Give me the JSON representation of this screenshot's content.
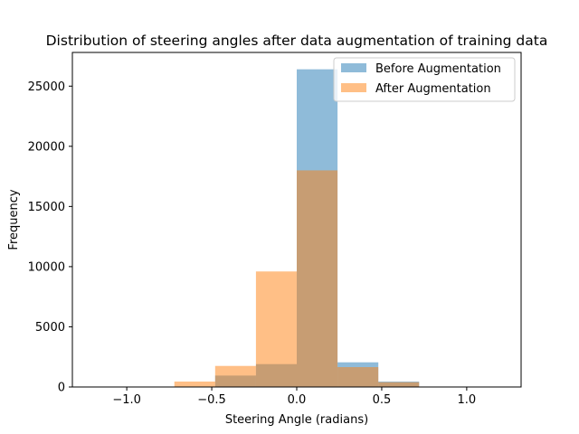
{
  "chart_data": {
    "type": "bar",
    "title": "Distribution of steering angles after data augmentation of training data",
    "xlabel": "Steering Angle (radians)",
    "ylabel": "Frequency",
    "xlim": [
      -1.32,
      1.32
    ],
    "ylim": [
      0,
      27800
    ],
    "xticks": [
      -1.0,
      -0.5,
      0.0,
      0.5,
      1.0
    ],
    "xtick_labels": [
      "−1.0",
      "−0.5",
      "0.0",
      "0.5",
      "1.0"
    ],
    "yticks": [
      0,
      5000,
      10000,
      15000,
      20000,
      25000
    ],
    "ytick_labels": [
      "0",
      "5000",
      "10000",
      "15000",
      "20000",
      "25000"
    ],
    "legend_position": "top-right",
    "grid": false,
    "series": [
      {
        "name": "Before Augmentation",
        "color": "#1f77b4",
        "opacity": 0.5,
        "bins": [
          {
            "x0": -0.48,
            "x1": -0.24,
            "value": 950
          },
          {
            "x0": -0.24,
            "x1": 0.0,
            "value": 1900
          },
          {
            "x0": 0.0,
            "x1": 0.24,
            "value": 26400
          },
          {
            "x0": 0.24,
            "x1": 0.48,
            "value": 2050
          },
          {
            "x0": 0.48,
            "x1": 0.72,
            "value": 450
          }
        ]
      },
      {
        "name": "After Augmentation",
        "color": "#ff7f0e",
        "opacity": 0.5,
        "bins": [
          {
            "x0": -0.72,
            "x1": -0.48,
            "value": 450
          },
          {
            "x0": -0.48,
            "x1": -0.24,
            "value": 1750
          },
          {
            "x0": -0.24,
            "x1": 0.0,
            "value": 9600
          },
          {
            "x0": 0.0,
            "x1": 0.24,
            "value": 18000
          },
          {
            "x0": 0.24,
            "x1": 0.48,
            "value": 1650
          },
          {
            "x0": 0.48,
            "x1": 0.72,
            "value": 400
          }
        ]
      }
    ]
  }
}
